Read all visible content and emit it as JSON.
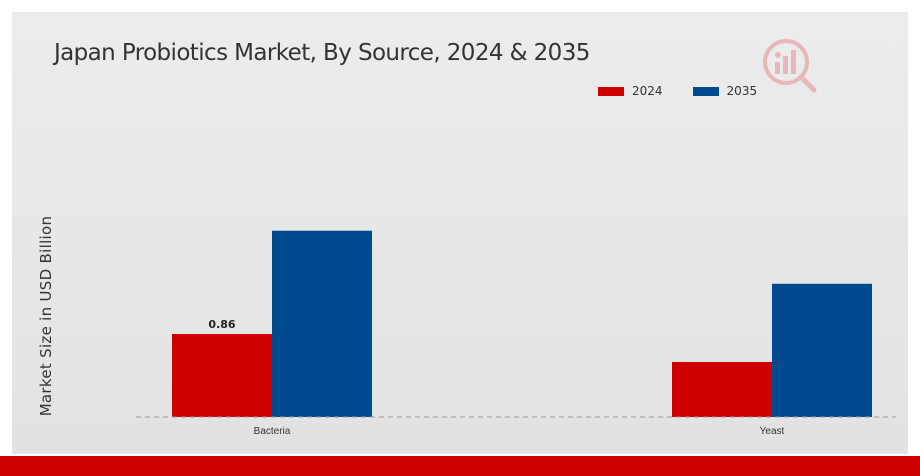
{
  "chart_data": {
    "type": "bar",
    "title": "Japan Probiotics Market, By Source, 2024 & 2035",
    "ylabel": "Market Size in USD Billion",
    "xlabel": "",
    "categories": [
      "Bacteria",
      "Yeast"
    ],
    "series": [
      {
        "name": "2024",
        "color": "#cc0000",
        "values": [
          0.86,
          0.57
        ]
      },
      {
        "name": "2035",
        "color": "#004a8f",
        "values": [
          1.93,
          1.38
        ]
      }
    ],
    "data_labels": [
      {
        "series": 0,
        "category": 0,
        "text": "0.86"
      }
    ],
    "ylim": [
      0,
      2.3
    ],
    "grid": false,
    "legend_position": "top-right",
    "baseline_style": "dashed"
  }
}
